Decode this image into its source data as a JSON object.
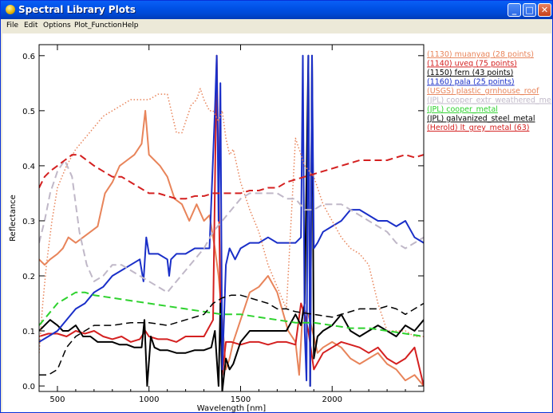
{
  "window": {
    "title": "Spectral Library Plots",
    "btn_min": "_",
    "btn_max": "□",
    "btn_close": "✕"
  },
  "menu": [
    "File",
    "Edit",
    "Options",
    "Plot_Function",
    "Help"
  ],
  "chart_data": {
    "type": "line",
    "xlabel": "Wavelength [nm]",
    "ylabel": "Reflectance",
    "xlim": [
      400,
      2500
    ],
    "ylim": [
      -0.01,
      0.62
    ],
    "xticks": [
      500,
      1000,
      1500,
      2000
    ],
    "yticks": [
      0.0,
      0.1,
      0.2,
      0.3,
      0.4,
      0.5,
      0.6
    ],
    "ytick_labels": [
      "0.0",
      "0.1",
      "0.2",
      "0.3",
      "0.4",
      "0.5",
      "0.6"
    ],
    "legend_position": "top-right",
    "series": [
      {
        "name": "(1130) muanyaq (28 points)",
        "color": "#e8845a",
        "dash": "solid",
        "width": 2,
        "x": [
          400,
          430,
          460,
          500,
          530,
          560,
          600,
          640,
          680,
          720,
          760,
          800,
          840,
          880,
          920,
          960,
          980,
          1000,
          1030,
          1060,
          1100,
          1140,
          1180,
          1220,
          1260,
          1300,
          1330,
          1360,
          1380,
          1400,
          1420,
          1440,
          1460,
          1500,
          1550,
          1600,
          1650,
          1700,
          1760,
          1800,
          1820,
          1840,
          1870,
          1900,
          1920,
          1950,
          2000,
          2050,
          2100,
          2150,
          2200,
          2250,
          2300,
          2350,
          2400,
          2450,
          2500
        ],
        "y": [
          0.23,
          0.22,
          0.23,
          0.24,
          0.25,
          0.27,
          0.26,
          0.27,
          0.28,
          0.29,
          0.35,
          0.37,
          0.4,
          0.41,
          0.42,
          0.44,
          0.5,
          0.42,
          0.41,
          0.4,
          0.38,
          0.34,
          0.33,
          0.3,
          0.33,
          0.3,
          0.31,
          0.25,
          0.2,
          0.12,
          0.03,
          0.05,
          0.08,
          0.12,
          0.17,
          0.18,
          0.2,
          0.17,
          0.1,
          0.08,
          0.02,
          0.14,
          0.13,
          0.09,
          0.06,
          0.07,
          0.08,
          0.07,
          0.05,
          0.04,
          0.05,
          0.06,
          0.04,
          0.03,
          0.01,
          0.02,
          0.0
        ]
      },
      {
        "name": "(1140) uveq (75 points)",
        "color": "#d42020",
        "dash": "solid",
        "width": 2,
        "x": [
          400,
          450,
          500,
          550,
          600,
          650,
          700,
          750,
          800,
          850,
          900,
          950,
          980,
          1000,
          1050,
          1100,
          1150,
          1200,
          1250,
          1300,
          1350,
          1370,
          1390,
          1400,
          1420,
          1450,
          1500,
          1550,
          1600,
          1650,
          1700,
          1750,
          1800,
          1830,
          1850,
          1870,
          1900,
          1950,
          2000,
          2050,
          2100,
          2150,
          2200,
          2250,
          2300,
          2350,
          2400,
          2450,
          2500
        ],
        "y": [
          0.09,
          0.095,
          0.095,
          0.09,
          0.1,
          0.095,
          0.1,
          0.09,
          0.085,
          0.09,
          0.08,
          0.085,
          0.1,
          0.09,
          0.085,
          0.085,
          0.08,
          0.09,
          0.09,
          0.09,
          0.12,
          0.6,
          0.15,
          0.02,
          0.08,
          0.08,
          0.075,
          0.08,
          0.08,
          0.075,
          0.08,
          0.08,
          0.075,
          0.15,
          0.13,
          0.1,
          0.03,
          0.06,
          0.07,
          0.08,
          0.075,
          0.07,
          0.06,
          0.07,
          0.05,
          0.04,
          0.05,
          0.07,
          0.0
        ]
      },
      {
        "name": "(1150) fern (43 points)",
        "color": "#000000",
        "dash": "solid",
        "width": 2,
        "x": [
          400,
          430,
          460,
          500,
          530,
          560,
          600,
          640,
          680,
          720,
          760,
          800,
          840,
          880,
          920,
          960,
          975,
          990,
          1010,
          1030,
          1060,
          1100,
          1150,
          1200,
          1250,
          1300,
          1340,
          1360,
          1380,
          1390,
          1400,
          1420,
          1440,
          1460,
          1480,
          1500,
          1550,
          1600,
          1650,
          1700,
          1750,
          1800,
          1830,
          1850,
          1870,
          1880,
          1890,
          1900,
          1920,
          1950,
          2000,
          2050,
          2100,
          2150,
          2200,
          2250,
          2300,
          2350,
          2400,
          2450,
          2500
        ],
        "y": [
          0.1,
          0.11,
          0.12,
          0.11,
          0.1,
          0.1,
          0.11,
          0.09,
          0.09,
          0.08,
          0.08,
          0.08,
          0.075,
          0.075,
          0.07,
          0.07,
          0.12,
          0.0,
          0.09,
          0.07,
          0.065,
          0.065,
          0.06,
          0.06,
          0.065,
          0.065,
          0.07,
          0.1,
          0.0,
          0.15,
          -0.01,
          0.05,
          0.03,
          0.04,
          0.06,
          0.08,
          0.1,
          0.1,
          0.1,
          0.1,
          0.1,
          0.13,
          0.11,
          0.15,
          0.6,
          0.0,
          0.6,
          0.05,
          0.09,
          0.1,
          0.11,
          0.13,
          0.1,
          0.09,
          0.1,
          0.11,
          0.1,
          0.09,
          0.11,
          0.1,
          0.12
        ]
      },
      {
        "name": "(1160) pala (25 points)",
        "color": "#1a2fc8",
        "dash": "solid",
        "width": 2,
        "x": [
          400,
          450,
          500,
          550,
          600,
          650,
          700,
          750,
          800,
          850,
          900,
          950,
          970,
          985,
          1000,
          1050,
          1100,
          1110,
          1120,
          1150,
          1200,
          1250,
          1300,
          1330,
          1360,
          1370,
          1380,
          1390,
          1400,
          1420,
          1440,
          1470,
          1500,
          1550,
          1600,
          1650,
          1700,
          1750,
          1800,
          1830,
          1840,
          1850,
          1860,
          1870,
          1880,
          1890,
          1900,
          1920,
          1950,
          2000,
          2050,
          2100,
          2150,
          2200,
          2250,
          2300,
          2350,
          2400,
          2450,
          2500
        ],
        "y": [
          0.08,
          0.09,
          0.1,
          0.12,
          0.14,
          0.15,
          0.17,
          0.18,
          0.2,
          0.21,
          0.22,
          0.23,
          0.19,
          0.27,
          0.24,
          0.24,
          0.23,
          0.2,
          0.23,
          0.24,
          0.24,
          0.25,
          0.25,
          0.25,
          0.5,
          0.6,
          0.3,
          0.55,
          0.03,
          0.22,
          0.25,
          0.23,
          0.25,
          0.26,
          0.26,
          0.27,
          0.26,
          0.26,
          0.26,
          0.27,
          0.6,
          0.1,
          0.01,
          0.6,
          0.0,
          0.6,
          0.25,
          0.26,
          0.28,
          0.29,
          0.3,
          0.32,
          0.32,
          0.31,
          0.3,
          0.3,
          0.29,
          0.3,
          0.27,
          0.26
        ]
      },
      {
        "name": "(USGS) plastic_grnhouse_roof",
        "color": "#e8845a",
        "dash": "dotted",
        "width": 1.5,
        "x": [
          400,
          420,
          440,
          470,
          500,
          550,
          600,
          650,
          700,
          750,
          800,
          850,
          900,
          950,
          1000,
          1050,
          1100,
          1150,
          1180,
          1200,
          1230,
          1260,
          1280,
          1300,
          1330,
          1350,
          1380,
          1400,
          1420,
          1440,
          1460,
          1480,
          1500,
          1550,
          1600,
          1650,
          1700,
          1750,
          1800,
          1850,
          1900,
          1950,
          2000,
          2050,
          2100,
          2150,
          2200,
          2250,
          2300,
          2350,
          2400,
          2450,
          2500
        ],
        "y": [
          0.06,
          0.15,
          0.22,
          0.3,
          0.36,
          0.4,
          0.43,
          0.45,
          0.47,
          0.49,
          0.5,
          0.51,
          0.52,
          0.52,
          0.52,
          0.53,
          0.53,
          0.46,
          0.46,
          0.48,
          0.51,
          0.52,
          0.54,
          0.52,
          0.5,
          0.5,
          0.48,
          0.5,
          0.45,
          0.42,
          0.43,
          0.4,
          0.37,
          0.32,
          0.28,
          0.22,
          0.18,
          0.14,
          0.45,
          0.4,
          0.38,
          0.33,
          0.3,
          0.27,
          0.25,
          0.24,
          0.22,
          0.15,
          0.1,
          0.1,
          0.1,
          0.09,
          0.09
        ]
      },
      {
        "name": "(JPL) cooper_extr_weathered_me",
        "color": "#c0b8c8",
        "dash": "dashed",
        "width": 2,
        "x": [
          400,
          430,
          460,
          500,
          540,
          580,
          620,
          660,
          700,
          750,
          800,
          850,
          900,
          950,
          1000,
          1050,
          1100,
          1150,
          1200,
          1250,
          1300,
          1350,
          1400,
          1450,
          1500,
          1550,
          1600,
          1650,
          1700,
          1750,
          1800,
          1850,
          1900,
          1950,
          2000,
          2050,
          2100,
          2150,
          2200,
          2250,
          2300,
          2350,
          2400,
          2450,
          2500
        ],
        "y": [
          0.26,
          0.3,
          0.35,
          0.39,
          0.41,
          0.38,
          0.28,
          0.22,
          0.19,
          0.2,
          0.22,
          0.22,
          0.21,
          0.2,
          0.19,
          0.18,
          0.17,
          0.19,
          0.21,
          0.23,
          0.25,
          0.28,
          0.3,
          0.32,
          0.34,
          0.35,
          0.35,
          0.35,
          0.35,
          0.34,
          0.34,
          0.32,
          0.32,
          0.33,
          0.33,
          0.33,
          0.32,
          0.31,
          0.3,
          0.29,
          0.28,
          0.26,
          0.25,
          0.26,
          0.27
        ]
      },
      {
        "name": "(JPL) cooper_metal",
        "color": "#2ed22e",
        "dash": "dashed",
        "width": 2,
        "x": [
          400,
          450,
          500,
          550,
          600,
          650,
          700,
          800,
          900,
          1000,
          1100,
          1200,
          1300,
          1400,
          1500,
          1600,
          1700,
          1800,
          1900,
          2000,
          2100,
          2200,
          2300,
          2400,
          2500
        ],
        "y": [
          0.11,
          0.13,
          0.15,
          0.16,
          0.17,
          0.17,
          0.165,
          0.16,
          0.155,
          0.15,
          0.145,
          0.14,
          0.135,
          0.13,
          0.13,
          0.125,
          0.12,
          0.115,
          0.115,
          0.11,
          0.105,
          0.105,
          0.1,
          0.095,
          0.09
        ]
      },
      {
        "name": "(JPL) galvanized_steel_metal",
        "color": "#000000",
        "dash": "dashed",
        "width": 1.5,
        "x": [
          400,
          450,
          500,
          550,
          600,
          650,
          700,
          800,
          900,
          1000,
          1100,
          1200,
          1300,
          1350,
          1400,
          1450,
          1500,
          1550,
          1600,
          1650,
          1700,
          1750,
          1800,
          1900,
          2000,
          2050,
          2100,
          2150,
          2200,
          2250,
          2300,
          2350,
          2400,
          2450,
          2500
        ],
        "y": [
          0.02,
          0.02,
          0.03,
          0.07,
          0.09,
          0.1,
          0.11,
          0.11,
          0.115,
          0.115,
          0.11,
          0.12,
          0.13,
          0.15,
          0.16,
          0.165,
          0.165,
          0.16,
          0.155,
          0.15,
          0.14,
          0.14,
          0.135,
          0.13,
          0.125,
          0.13,
          0.135,
          0.14,
          0.14,
          0.14,
          0.145,
          0.14,
          0.13,
          0.14,
          0.15
        ]
      },
      {
        "name": "(Herold) lt_grey_metal (63)",
        "color": "#d42020",
        "dash": "dashed",
        "width": 2,
        "x": [
          400,
          430,
          460,
          500,
          540,
          580,
          620,
          660,
          700,
          750,
          800,
          850,
          900,
          950,
          1000,
          1050,
          1100,
          1150,
          1200,
          1250,
          1300,
          1350,
          1400,
          1450,
          1500,
          1550,
          1600,
          1650,
          1700,
          1750,
          1800,
          1850,
          1900,
          1950,
          2000,
          2050,
          2100,
          2150,
          2200,
          2250,
          2300,
          2350,
          2400,
          2450,
          2500
        ],
        "y": [
          0.36,
          0.38,
          0.39,
          0.4,
          0.41,
          0.42,
          0.42,
          0.41,
          0.4,
          0.39,
          0.38,
          0.38,
          0.37,
          0.36,
          0.35,
          0.35,
          0.345,
          0.34,
          0.34,
          0.345,
          0.345,
          0.35,
          0.35,
          0.35,
          0.35,
          0.355,
          0.355,
          0.36,
          0.36,
          0.37,
          0.375,
          0.38,
          0.385,
          0.39,
          0.395,
          0.4,
          0.405,
          0.41,
          0.41,
          0.41,
          0.41,
          0.415,
          0.42,
          0.415,
          0.42
        ]
      }
    ]
  }
}
